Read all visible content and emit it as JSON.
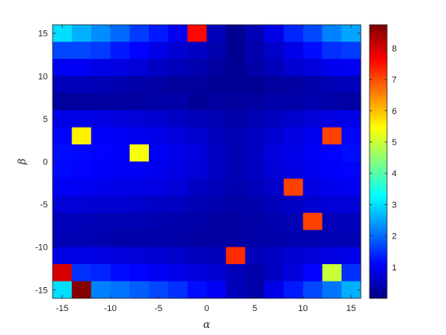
{
  "chart_data": {
    "type": "heatmap",
    "xlabel": "α",
    "ylabel": "β",
    "x_ticks": [
      -15,
      -10,
      -5,
      0,
      5,
      10,
      15
    ],
    "y_ticks": [
      -15,
      -10,
      -5,
      0,
      5,
      10,
      15
    ],
    "x_cell_centers": [
      -15,
      -13,
      -11,
      -9,
      -7,
      -5,
      -3,
      -1,
      1,
      3,
      5,
      7,
      9,
      11,
      13,
      15
    ],
    "y_cell_centers": [
      15,
      13,
      11,
      9,
      7,
      5,
      3,
      1,
      -1,
      -3,
      -5,
      -7,
      -9,
      -11,
      -13,
      -15
    ],
    "xlim": [
      -16,
      16
    ],
    "ylim": [
      -16,
      16
    ],
    "colorbar": {
      "colormap": "jet",
      "clim": [
        0,
        8.75
      ],
      "ticks": [
        1,
        2,
        3,
        4,
        5,
        6,
        7,
        8
      ]
    },
    "values": [
      [
        3.0,
        2.6,
        2.3,
        2.0,
        1.6,
        1.3,
        1.0,
        7.6,
        0.5,
        0.15,
        0.45,
        0.9,
        1.4,
        1.7,
        2.2,
        2.5
      ],
      [
        1.7,
        1.7,
        1.6,
        1.3,
        1.1,
        0.9,
        0.7,
        0.6,
        0.4,
        0.15,
        0.4,
        0.65,
        0.9,
        1.2,
        1.5,
        1.6
      ],
      [
        1.0,
        1.0,
        0.9,
        0.85,
        0.75,
        0.6,
        0.5,
        0.4,
        0.3,
        0.2,
        0.35,
        0.5,
        0.7,
        0.8,
        0.95,
        1.0
      ],
      [
        0.5,
        0.5,
        0.45,
        0.4,
        0.35,
        0.3,
        0.25,
        0.25,
        0.2,
        0.2,
        0.2,
        0.25,
        0.3,
        0.35,
        0.45,
        0.5
      ],
      [
        0.25,
        0.25,
        0.3,
        0.3,
        0.3,
        0.35,
        0.35,
        0.2,
        0.3,
        0.25,
        0.3,
        0.35,
        0.35,
        0.4,
        0.35,
        0.3
      ],
      [
        0.9,
        0.9,
        0.85,
        0.8,
        0.75,
        0.7,
        0.6,
        0.5,
        0.45,
        0.35,
        0.45,
        0.55,
        0.65,
        0.75,
        0.85,
        0.9
      ],
      [
        1.1,
        5.6,
        1.05,
        1.0,
        0.95,
        0.9,
        0.8,
        0.7,
        0.55,
        0.45,
        0.55,
        0.7,
        0.85,
        0.95,
        7.1,
        1.1
      ],
      [
        1.2,
        1.15,
        1.1,
        1.05,
        5.4,
        1.0,
        0.9,
        0.8,
        0.6,
        0.45,
        0.6,
        0.8,
        0.9,
        1.0,
        1.1,
        1.2
      ],
      [
        1.15,
        1.1,
        1.05,
        1.0,
        1.0,
        0.95,
        0.85,
        0.75,
        0.6,
        0.45,
        0.6,
        0.75,
        0.85,
        0.95,
        1.05,
        1.1
      ],
      [
        1.0,
        1.0,
        0.95,
        0.9,
        0.9,
        0.85,
        0.75,
        0.6,
        0.5,
        0.4,
        0.5,
        0.65,
        7.1,
        0.85,
        0.95,
        1.0
      ],
      [
        0.75,
        0.75,
        0.7,
        0.7,
        0.65,
        0.6,
        0.55,
        0.45,
        0.4,
        0.35,
        0.4,
        0.5,
        0.6,
        0.7,
        0.75,
        0.75
      ],
      [
        0.5,
        0.5,
        0.45,
        0.45,
        0.45,
        0.4,
        0.4,
        0.35,
        0.3,
        0.3,
        0.35,
        0.4,
        0.45,
        7.1,
        0.5,
        0.5
      ],
      [
        0.45,
        0.45,
        0.4,
        0.35,
        0.35,
        0.35,
        0.35,
        0.3,
        0.3,
        0.3,
        0.35,
        0.35,
        0.4,
        0.4,
        0.45,
        0.45
      ],
      [
        0.9,
        0.9,
        0.85,
        0.8,
        0.75,
        0.7,
        0.65,
        0.55,
        0.5,
        7.3,
        0.5,
        0.6,
        0.7,
        0.75,
        0.85,
        0.9
      ],
      [
        8.0,
        1.5,
        1.4,
        1.2,
        1.1,
        1.0,
        0.9,
        0.8,
        0.7,
        0.5,
        0.35,
        0.6,
        0.8,
        1.1,
        5.0,
        1.5
      ],
      [
        3.0,
        8.7,
        2.2,
        2.1,
        1.9,
        1.7,
        1.5,
        1.2,
        1.0,
        0.5,
        0.35,
        0.9,
        1.3,
        1.7,
        2.1,
        2.6
      ]
    ]
  }
}
